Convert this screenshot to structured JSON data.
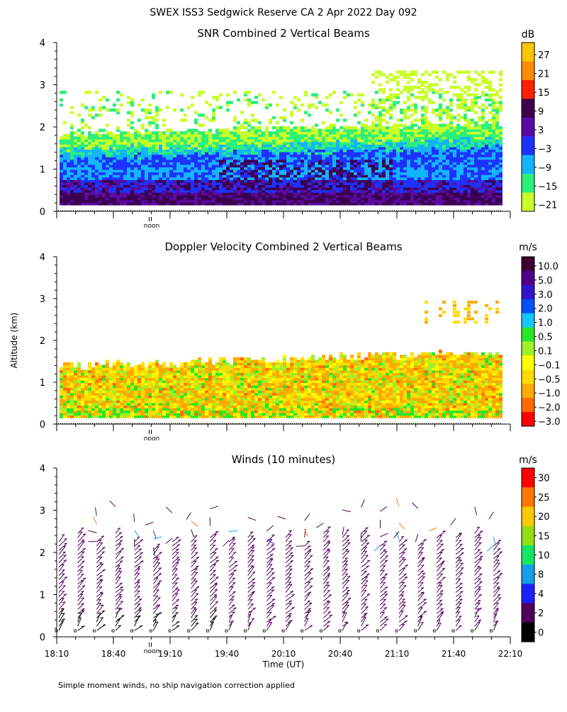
{
  "header": {
    "title": "SWEX ISS3 Sedgwick Reserve CA   2 Apr 2022 Day 092"
  },
  "shared": {
    "y_axis_label": "Altitude (km)",
    "x_axis_label": "Time (UT)",
    "noon_label": "noon",
    "footnote": "Simple moment winds, no ship navigation correction applied"
  },
  "chart_data": [
    {
      "type": "heatmap",
      "title": "SNR Combined 2 Vertical Beams",
      "ylabel": "Altitude (km)",
      "ylim": [
        0,
        4
      ],
      "yticks": [
        0,
        1,
        2,
        3,
        4
      ],
      "xlim": [
        "18:10",
        "22:10"
      ],
      "colorbar": {
        "unit": "dB",
        "labels": [
          "27",
          "21",
          "15",
          "9",
          "3",
          "−3",
          "−9",
          "−15",
          "−21"
        ],
        "colors": [
          "#ffc400",
          "#ff8c00",
          "#ff2000",
          "#3c0050",
          "#5a0aa0",
          "#1e32ff",
          "#14b4ff",
          "#2cf07a",
          "#c8ff28"
        ]
      },
      "description_bands": [
        {
          "alt_range_km": [
            0.15,
            0.6
          ],
          "dominant": "9 to 3 dB"
        },
        {
          "alt_range_km": [
            0.6,
            1.4
          ],
          "dominant": "3 to -9 dB"
        },
        {
          "alt_range_km": [
            1.4,
            1.9
          ],
          "dominant": "-15 to -21 dB"
        }
      ]
    },
    {
      "type": "heatmap",
      "title": "Doppler Velocity Combined 2 Vertical Beams",
      "ylabel": "Altitude (km)",
      "ylim": [
        0,
        4
      ],
      "yticks": [
        0,
        1,
        2,
        3,
        4
      ],
      "xlim": [
        "18:10",
        "22:10"
      ],
      "colorbar": {
        "unit": "m/s",
        "labels": [
          "10.0",
          "5.0",
          "3.0",
          "2.0",
          "1.0",
          "0.5",
          "0.1",
          "−0.1",
          "−0.5",
          "−1.0",
          "−2.0",
          "−3.0"
        ],
        "colors": [
          "#3c0032",
          "#50008c",
          "#3214c8",
          "#0050ff",
          "#14c8ff",
          "#28e628",
          "#a0f028",
          "#ffff00",
          "#ffdc00",
          "#ffaa00",
          "#ff6a00",
          "#ff0000"
        ]
      }
    },
    {
      "type": "scatter",
      "title": "Winds (10 minutes)",
      "ylabel": "Altitude (km)",
      "xlabel": "Time (UT)",
      "ylim": [
        0,
        4
      ],
      "yticks": [
        0,
        1,
        2,
        3,
        4
      ],
      "xticks": [
        "18:10",
        "18:40",
        "19:10",
        "19:40",
        "20:10",
        "20:40",
        "21:10",
        "21:40",
        "22:10"
      ],
      "colorbar": {
        "unit": "m/s",
        "labels": [
          "30",
          "25",
          "20",
          "15",
          "10",
          "8",
          "4",
          "2",
          "0"
        ],
        "colors": [
          "#ff0000",
          "#ff7800",
          "#ffc800",
          "#96dc14",
          "#14e664",
          "#14a0e6",
          "#1e1eff",
          "#50005a",
          "#000000"
        ]
      },
      "profile_times": [
        "18:10",
        "18:20",
        "18:30",
        "18:40",
        "18:50",
        "19:00",
        "19:10",
        "19:20",
        "19:30",
        "19:40",
        "19:50",
        "20:00",
        "20:10",
        "20:20",
        "20:30",
        "20:40",
        "20:50",
        "21:00",
        "21:10",
        "21:20",
        "21:30",
        "21:40",
        "21:50",
        "22:00"
      ]
    }
  ]
}
